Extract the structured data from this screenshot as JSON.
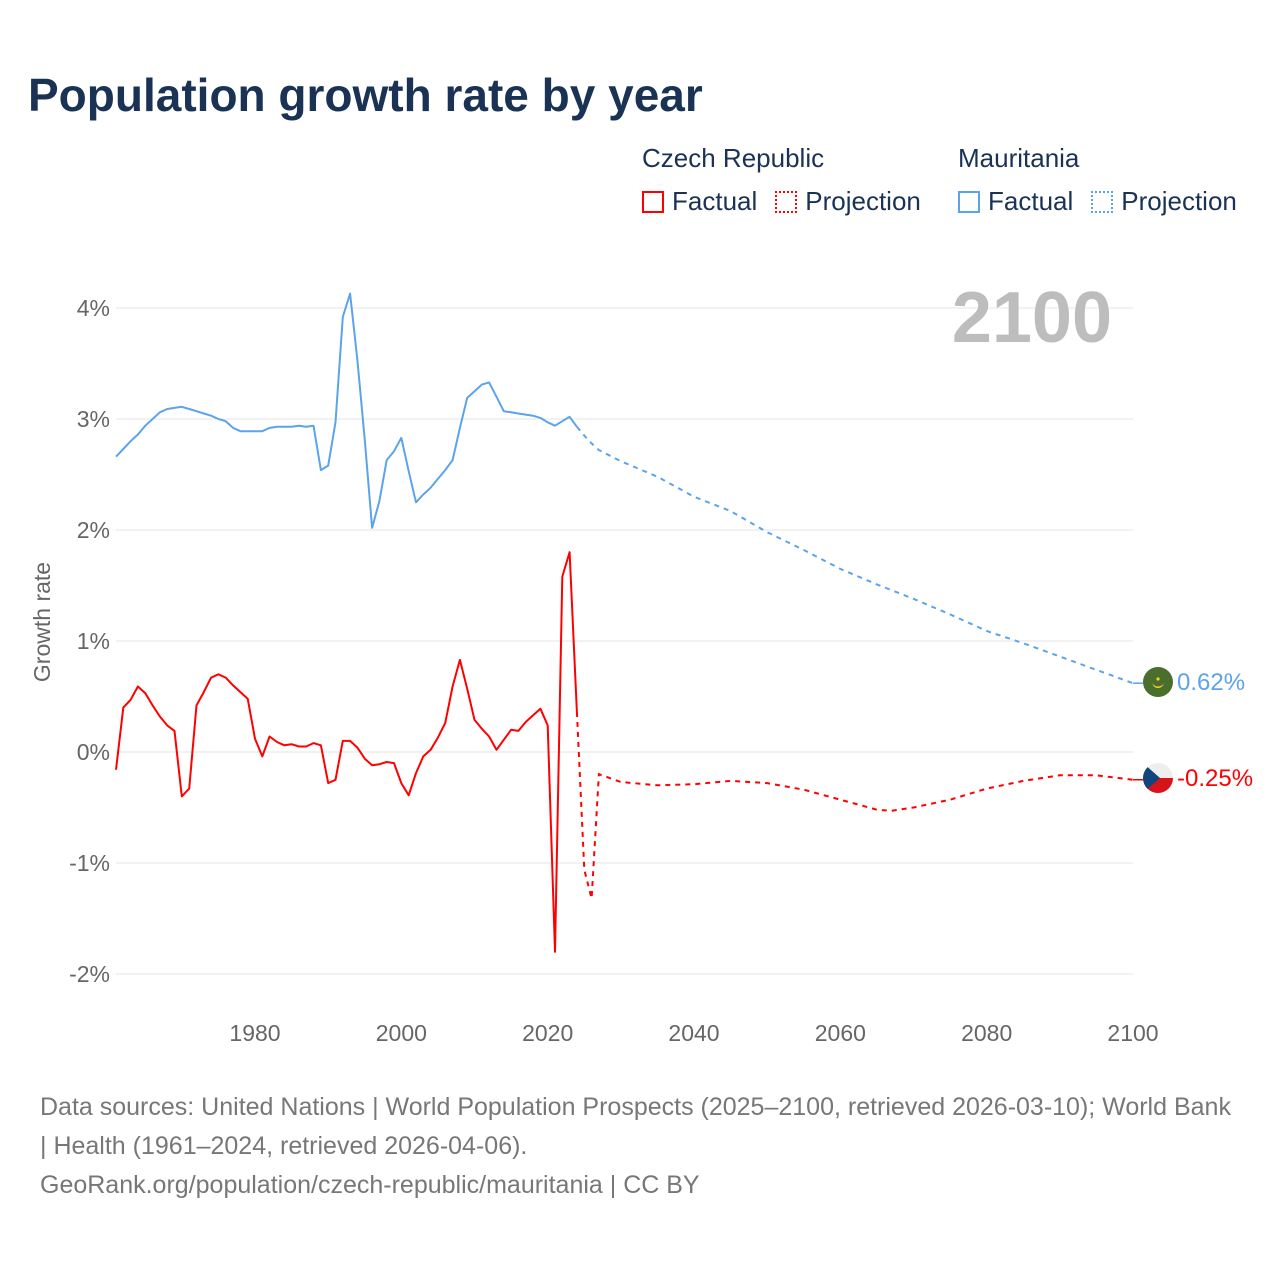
{
  "title": "Population growth rate by year",
  "legend": {
    "czech": {
      "name": "Czech Republic",
      "factual": "Factual",
      "projection": "Projection",
      "color": "#ff0000"
    },
    "mauritania": {
      "name": "Mauritania",
      "factual": "Factual",
      "projection": "Projection",
      "color": "#5ba4ec"
    }
  },
  "year_label": "2100",
  "footer": {
    "sources": "Data sources: United Nations | World Population Prospects (2025–2100, retrieved 2026-03-10); World Bank | Health (1961–2024, retrieved 2026-04-06).",
    "link": "GeoRank.org/population/czech-republic/mauritania | CC BY"
  },
  "chart_data": {
    "type": "line",
    "title": "Population growth rate by year",
    "xlabel": "",
    "ylabel": "Growth rate",
    "xlim": [
      1961,
      2100
    ],
    "ylim": [
      -2,
      4
    ],
    "x_ticks": [
      "1980",
      "2000",
      "2020",
      "2040",
      "2060",
      "2080",
      "2100"
    ],
    "x_tick_values": [
      1980,
      2000,
      2020,
      2040,
      2060,
      2080,
      2100
    ],
    "y_ticks": [
      "-2%",
      "-1%",
      "0%",
      "1%",
      "2%",
      "3%",
      "4%"
    ],
    "y_tick_values": [
      -2,
      -1,
      0,
      1,
      2,
      3,
      4
    ],
    "grid": true,
    "series": [
      {
        "name": "Czech Republic",
        "color": "#ff0000",
        "end_label": "-0.25%",
        "factual": [
          [
            1961,
            -0.16
          ],
          [
            1962,
            0.4
          ],
          [
            1963,
            0.47
          ],
          [
            1964,
            0.59
          ],
          [
            1965,
            0.53
          ],
          [
            1966,
            0.42
          ],
          [
            1967,
            0.32
          ],
          [
            1968,
            0.24
          ],
          [
            1969,
            0.19
          ],
          [
            1970,
            -0.4
          ],
          [
            1971,
            -0.33
          ],
          [
            1972,
            0.42
          ],
          [
            1973,
            0.54
          ],
          [
            1974,
            0.67
          ],
          [
            1975,
            0.7
          ],
          [
            1976,
            0.67
          ],
          [
            1977,
            0.6
          ],
          [
            1978,
            0.54
          ],
          [
            1979,
            0.48
          ],
          [
            1980,
            0.12
          ],
          [
            1981,
            -0.04
          ],
          [
            1982,
            0.14
          ],
          [
            1983,
            0.09
          ],
          [
            1984,
            0.06
          ],
          [
            1985,
            0.07
          ],
          [
            1986,
            0.05
          ],
          [
            1987,
            0.05
          ],
          [
            1988,
            0.08
          ],
          [
            1989,
            0.06
          ],
          [
            1990,
            -0.28
          ],
          [
            1991,
            -0.25
          ],
          [
            1992,
            0.1
          ],
          [
            1993,
            0.1
          ],
          [
            1994,
            0.04
          ],
          [
            1995,
            -0.06
          ],
          [
            1996,
            -0.12
          ],
          [
            1997,
            -0.11
          ],
          [
            1998,
            -0.09
          ],
          [
            1999,
            -0.1
          ],
          [
            2000,
            -0.28
          ],
          [
            2001,
            -0.39
          ],
          [
            2002,
            -0.19
          ],
          [
            2003,
            -0.04
          ],
          [
            2004,
            0.02
          ],
          [
            2005,
            0.13
          ],
          [
            2006,
            0.26
          ],
          [
            2007,
            0.59
          ],
          [
            2008,
            0.83
          ],
          [
            2009,
            0.57
          ],
          [
            2010,
            0.29
          ],
          [
            2011,
            0.21
          ],
          [
            2012,
            0.14
          ],
          [
            2013,
            0.02
          ],
          [
            2014,
            0.11
          ],
          [
            2015,
            0.2
          ],
          [
            2016,
            0.19
          ],
          [
            2017,
            0.27
          ],
          [
            2018,
            0.33
          ],
          [
            2019,
            0.39
          ],
          [
            2020,
            0.24
          ],
          [
            2021,
            -1.8
          ],
          [
            2022,
            1.58
          ],
          [
            2023,
            1.8
          ],
          [
            2024,
            0.36
          ]
        ],
        "projection": [
          [
            2024,
            0.36
          ],
          [
            2025,
            -1.06
          ],
          [
            2026,
            -1.32
          ],
          [
            2027,
            -0.2
          ],
          [
            2030,
            -0.27
          ],
          [
            2035,
            -0.3
          ],
          [
            2040,
            -0.29
          ],
          [
            2045,
            -0.26
          ],
          [
            2050,
            -0.28
          ],
          [
            2055,
            -0.34
          ],
          [
            2060,
            -0.43
          ],
          [
            2065,
            -0.52
          ],
          [
            2067,
            -0.53
          ],
          [
            2070,
            -0.5
          ],
          [
            2075,
            -0.43
          ],
          [
            2080,
            -0.33
          ],
          [
            2085,
            -0.26
          ],
          [
            2090,
            -0.21
          ],
          [
            2095,
            -0.21
          ],
          [
            2100,
            -0.25
          ]
        ]
      },
      {
        "name": "Mauritania",
        "color": "#5ba4ec",
        "end_label": "0.62%",
        "factual": [
          [
            1961,
            2.66
          ],
          [
            1962,
            2.73
          ],
          [
            1963,
            2.8
          ],
          [
            1964,
            2.86
          ],
          [
            1965,
            2.94
          ],
          [
            1966,
            3.0
          ],
          [
            1967,
            3.06
          ],
          [
            1968,
            3.09
          ],
          [
            1969,
            3.1
          ],
          [
            1970,
            3.11
          ],
          [
            1971,
            3.09
          ],
          [
            1972,
            3.07
          ],
          [
            1973,
            3.05
          ],
          [
            1974,
            3.03
          ],
          [
            1975,
            3.0
          ],
          [
            1976,
            2.98
          ],
          [
            1977,
            2.92
          ],
          [
            1978,
            2.89
          ],
          [
            1979,
            2.89
          ],
          [
            1980,
            2.89
          ],
          [
            1981,
            2.89
          ],
          [
            1982,
            2.92
          ],
          [
            1983,
            2.93
          ],
          [
            1984,
            2.93
          ],
          [
            1985,
            2.93
          ],
          [
            1986,
            2.94
          ],
          [
            1987,
            2.93
          ],
          [
            1988,
            2.94
          ],
          [
            1989,
            2.54
          ],
          [
            1990,
            2.58
          ],
          [
            1991,
            2.97
          ],
          [
            1992,
            3.92
          ],
          [
            1993,
            4.13
          ],
          [
            1994,
            3.53
          ],
          [
            1995,
            2.81
          ],
          [
            1996,
            2.02
          ],
          [
            1997,
            2.26
          ],
          [
            1998,
            2.63
          ],
          [
            1999,
            2.71
          ],
          [
            2000,
            2.83
          ],
          [
            2001,
            2.53
          ],
          [
            2002,
            2.25
          ],
          [
            2003,
            2.32
          ],
          [
            2004,
            2.38
          ],
          [
            2005,
            2.46
          ],
          [
            2006,
            2.54
          ],
          [
            2007,
            2.63
          ],
          [
            2008,
            2.92
          ],
          [
            2009,
            3.19
          ],
          [
            2010,
            3.25
          ],
          [
            2011,
            3.31
          ],
          [
            2012,
            3.33
          ],
          [
            2013,
            3.2
          ],
          [
            2014,
            3.07
          ],
          [
            2015,
            3.06
          ],
          [
            2016,
            3.05
          ],
          [
            2017,
            3.04
          ],
          [
            2018,
            3.03
          ],
          [
            2019,
            3.01
          ],
          [
            2020,
            2.97
          ],
          [
            2021,
            2.94
          ],
          [
            2022,
            2.98
          ],
          [
            2023,
            3.02
          ],
          [
            2024,
            2.93
          ]
        ],
        "projection": [
          [
            2024,
            2.93
          ],
          [
            2025,
            2.85
          ],
          [
            2026,
            2.78
          ],
          [
            2027,
            2.72
          ],
          [
            2030,
            2.62
          ],
          [
            2035,
            2.48
          ],
          [
            2040,
            2.3
          ],
          [
            2045,
            2.17
          ],
          [
            2050,
            1.98
          ],
          [
            2055,
            1.82
          ],
          [
            2060,
            1.65
          ],
          [
            2065,
            1.51
          ],
          [
            2070,
            1.38
          ],
          [
            2075,
            1.24
          ],
          [
            2080,
            1.09
          ],
          [
            2085,
            0.98
          ],
          [
            2090,
            0.86
          ],
          [
            2095,
            0.74
          ],
          [
            2100,
            0.62
          ]
        ]
      }
    ]
  }
}
